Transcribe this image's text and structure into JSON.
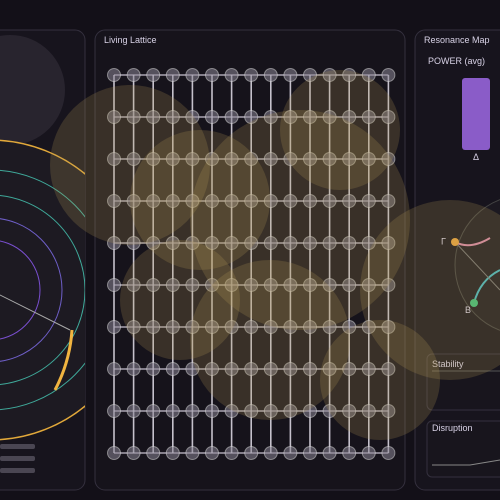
{
  "panels": {
    "lattice": {
      "title": "Living Lattice"
    },
    "resonance": {
      "title": "Resonance Map",
      "power_label": "POWER (avg)",
      "bar_label": "Δ",
      "nodes": [
        "Γ",
        "B"
      ],
      "stability": "Stability",
      "disruption": "Disruption"
    }
  }
}
